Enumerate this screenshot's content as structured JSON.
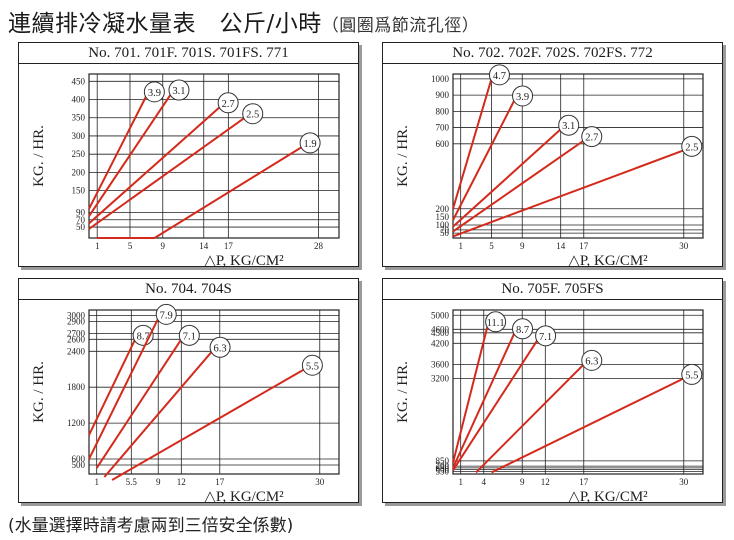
{
  "header": {
    "title": "連續排冷凝水量表　公斤/小時",
    "subtitle": "（圓圈爲節流孔徑）"
  },
  "footer": {
    "note": "(水量選擇時請考慮兩到三倍安全係數)"
  },
  "colors": {
    "line": "#d42a1c",
    "grid": "#222222",
    "text": "#1a1a1a"
  },
  "chart_data": [
    {
      "type": "line",
      "title": "No. 701. 701F. 701S. 701FS. 771",
      "xlabel": "△P,  KG/CM²",
      "ylabel": "KG. / HR.",
      "xticks": [
        1,
        5,
        9,
        14,
        17,
        28
      ],
      "yticks": [
        50,
        70,
        90,
        150,
        200,
        250,
        300,
        350,
        400,
        450
      ],
      "xlim": [
        0,
        31
      ],
      "ylim": [
        20,
        470
      ],
      "grid": true,
      "series": [
        {
          "name": "3.9",
          "points": [
            [
              0,
              100
            ],
            [
              7,
              410
            ]
          ]
        },
        {
          "name": "3.1",
          "points": [
            [
              0,
              80
            ],
            [
              10,
              415
            ]
          ]
        },
        {
          "name": "2.7",
          "points": [
            [
              0,
              60
            ],
            [
              16,
              380
            ]
          ]
        },
        {
          "name": "2.5",
          "points": [
            [
              0,
              45
            ],
            [
              19,
              350
            ]
          ]
        },
        {
          "name": "1.9",
          "points": [
            [
              1,
              20
            ],
            [
              8,
              20
            ],
            [
              26,
              270
            ]
          ]
        }
      ]
    },
    {
      "type": "line",
      "title": "No. 702. 702F. 702S. 702FS. 772",
      "xlabel": "△P,  KG/CM²",
      "ylabel": "KG. / HR.",
      "xticks": [
        1,
        5,
        9,
        14,
        17,
        30
      ],
      "yticks": [
        50,
        70,
        100,
        150,
        200,
        600,
        700,
        800,
        900,
        1000
      ],
      "grid": true,
      "series": [
        {
          "name": "4.7",
          "points": [
            [
              0,
              200
            ],
            [
              5,
              1000
            ]
          ]
        },
        {
          "name": "3.9",
          "points": [
            [
              0,
              130
            ],
            [
              8,
              870
            ]
          ]
        },
        {
          "name": "3.1",
          "points": [
            [
              0,
              90
            ],
            [
              14,
              690
            ]
          ]
        },
        {
          "name": "2.7",
          "points": [
            [
              0,
              60
            ],
            [
              17,
              620
            ]
          ]
        },
        {
          "name": "2.5",
          "points": [
            [
              0,
              30
            ],
            [
              30,
              560
            ]
          ]
        }
      ]
    },
    {
      "type": "line",
      "title": "No. 704. 704S",
      "xlabel": "△P,  KG/CM²",
      "ylabel": "KG. / HR.",
      "xticks": [
        1,
        5.5,
        9,
        12,
        17,
        30
      ],
      "yticks": [
        500,
        600,
        1200,
        1800,
        2400,
        2600,
        2700,
        2900,
        3000
      ],
      "grid": true,
      "series": [
        {
          "name": "8.7",
          "points": [
            [
              0,
              1000
            ],
            [
              6,
              2600
            ]
          ]
        },
        {
          "name": "7.9",
          "points": [
            [
              0,
              600
            ],
            [
              9,
              2950
            ]
          ]
        },
        {
          "name": "7.1",
          "points": [
            [
              1,
              450
            ],
            [
              12,
              2600
            ]
          ]
        },
        {
          "name": "6.3",
          "points": [
            [
              2,
              300
            ],
            [
              16,
              2400
            ]
          ]
        },
        {
          "name": "5.5",
          "points": [
            [
              3,
              250
            ],
            [
              28,
              2100
            ]
          ]
        }
      ]
    },
    {
      "type": "line",
      "title": "No. 705F. 705FS",
      "xlabel": "△P,  KG/CM²",
      "ylabel": "KG. / HR.",
      "xticks": [
        1,
        4,
        9,
        12,
        17,
        30
      ],
      "yticks": [
        550,
        600,
        650,
        700,
        850,
        3200,
        3600,
        4200,
        4500,
        4600,
        5000
      ],
      "grid": true,
      "series": [
        {
          "name": "11.1",
          "points": [
            [
              0,
              800
            ],
            [
              4.5,
              4700
            ]
          ]
        },
        {
          "name": "8.7",
          "points": [
            [
              0,
              650
            ],
            [
              8,
              4500
            ]
          ]
        },
        {
          "name": "7.1",
          "points": [
            [
              0,
              580
            ],
            [
              11,
              4300
            ]
          ]
        },
        {
          "name": "6.3",
          "points": [
            [
              3,
              520
            ],
            [
              17,
              3600
            ]
          ]
        },
        {
          "name": "5.5",
          "points": [
            [
              5,
              520
            ],
            [
              30,
              3200
            ]
          ]
        }
      ]
    }
  ]
}
